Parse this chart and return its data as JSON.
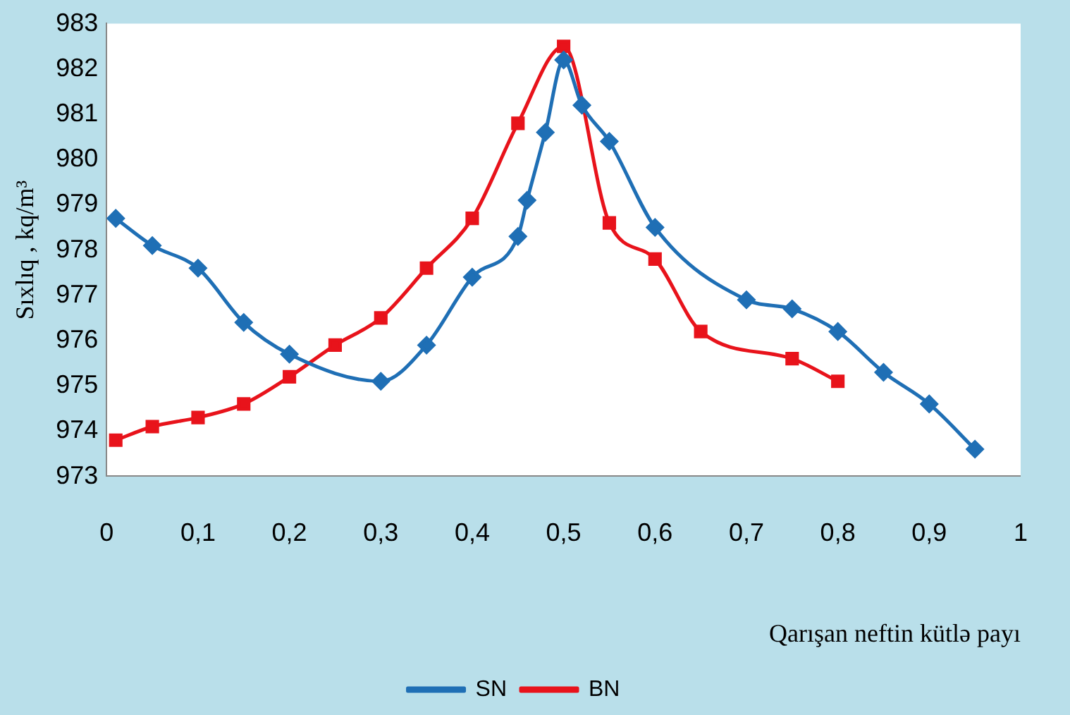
{
  "chart_data": {
    "type": "line",
    "ylabel": "Sıxlıq , kq/m³",
    "xlabel": "Qarışan neftin kütlə payı",
    "xlim": [
      0,
      1
    ],
    "xticks": [
      0,
      {
        "value": 0.1,
        "label": "0,1"
      },
      {
        "value": 0.2,
        "label": "0,2"
      },
      {
        "value": 0.3,
        "label": "0,3"
      },
      {
        "value": 0.4,
        "label": "0,4"
      },
      {
        "value": 0.5,
        "label": "0,5"
      },
      {
        "value": 0.6,
        "label": "0,6"
      },
      {
        "value": 0.7,
        "label": "0,7"
      },
      {
        "value": 0.8,
        "label": "0,8"
      },
      {
        "value": 0.9,
        "label": "0,9"
      },
      1
    ],
    "ylim": [
      973,
      983
    ],
    "yticks": [
      973,
      974,
      975,
      976,
      977,
      978,
      979,
      980,
      981,
      982,
      983
    ],
    "grid": false,
    "legend": "bottom",
    "line_style": "solid",
    "series": [
      {
        "name": "SN",
        "color": "#1f6fb5",
        "marker": "diamond",
        "x": [
          0.01,
          0.05,
          0.1,
          0.15,
          0.2,
          0.3,
          0.35,
          0.4,
          0.45,
          0.46,
          0.48,
          0.5,
          0.52,
          0.55,
          0.6,
          0.7,
          0.75,
          0.8,
          0.85,
          0.9,
          0.95
        ],
        "values": [
          978.7,
          978.1,
          977.6,
          976.4,
          975.7,
          975.1,
          975.9,
          977.4,
          978.3,
          979.1,
          980.6,
          982.2,
          981.2,
          980.4,
          978.5,
          976.9,
          976.7,
          976.2,
          975.3,
          974.6,
          973.6
        ]
      },
      {
        "name": "BN",
        "color": "#e8131b",
        "marker": "square",
        "x": [
          0.01,
          0.05,
          0.1,
          0.15,
          0.2,
          0.25,
          0.3,
          0.35,
          0.4,
          0.45,
          0.5,
          0.55,
          0.6,
          0.65,
          0.75,
          0.8
        ],
        "values": [
          973.8,
          974.1,
          974.3,
          974.6,
          975.2,
          975.9,
          976.5,
          977.6,
          978.7,
          980.8,
          982.5,
          978.6,
          977.8,
          976.2,
          975.6,
          975.1
        ]
      }
    ]
  }
}
